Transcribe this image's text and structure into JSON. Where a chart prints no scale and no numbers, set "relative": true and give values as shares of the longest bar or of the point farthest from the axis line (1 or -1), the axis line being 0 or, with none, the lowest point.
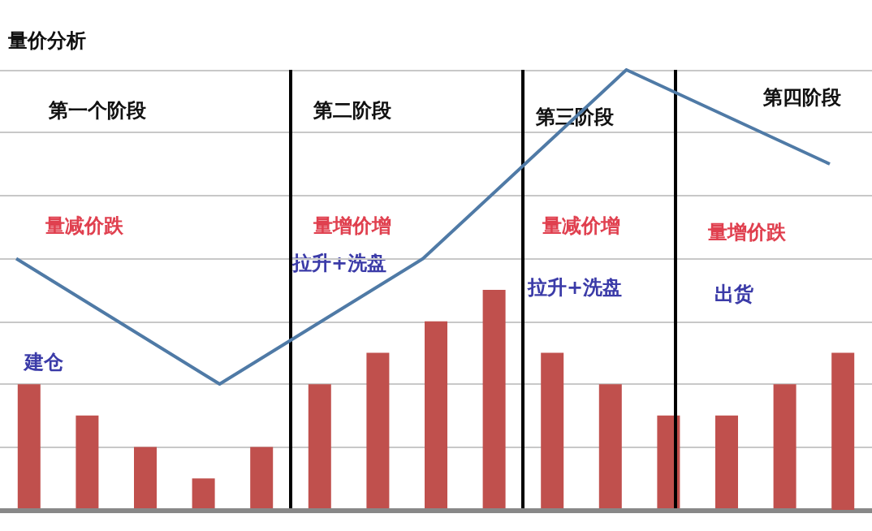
{
  "chart_data": [
    {
      "type": "bar",
      "title": "量价分析",
      "relative": true,
      "grid": "y",
      "color": "#c0504d",
      "categories": [
        null,
        null,
        null,
        null,
        null,
        null,
        null,
        null,
        null,
        null,
        null,
        null,
        null,
        null,
        null
      ],
      "values": [
        0.571,
        0.429,
        0.286,
        0.143,
        0.286,
        0.571,
        0.714,
        0.857,
        1,
        0.714,
        0.571,
        0.429,
        0.429,
        0.571,
        0.714
      ],
      "ref_lines": [
        {
          "axis": "x",
          "color": "#000000"
        },
        {
          "axis": "x",
          "color": "#000000"
        },
        {
          "axis": "x",
          "color": "#000000"
        }
      ],
      "annotations": [
        "第一个阶段",
        "第二阶段",
        "第三阶段",
        "第四阶段",
        "量减价跌",
        "量增价增",
        "量减价增",
        "量增价跌",
        "建仓",
        "拉升+洗盘",
        "拉升+洗盘",
        "出货"
      ]
    },
    {
      "type": "line",
      "relative": true,
      "color": "#4f7aa6",
      "categories": [
        null,
        null,
        null,
        null,
        null
      ],
      "values": [
        0.571,
        0.286,
        0.571,
        1,
        0.786
      ]
    }
  ]
}
